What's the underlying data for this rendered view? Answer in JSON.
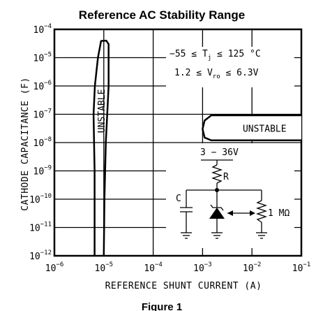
{
  "chart_data": {
    "type": "line",
    "title": "Reference AC Stability Range",
    "xlabel": "REFERENCE SHUNT CURRENT (A)",
    "ylabel": "CATHODE CAPACITANCE (F)",
    "x_scale": "log",
    "y_scale": "log",
    "xlim": [
      1e-06,
      0.1
    ],
    "ylim": [
      1e-12,
      0.0001
    ],
    "grid": true,
    "x_ticks": [
      {
        "base": "10",
        "exp": "−6"
      },
      {
        "base": "10",
        "exp": "−5"
      },
      {
        "base": "10",
        "exp": "−4"
      },
      {
        "base": "10",
        "exp": "−3"
      },
      {
        "base": "10",
        "exp": "−2"
      },
      {
        "base": "10",
        "exp": "−1"
      }
    ],
    "y_ticks": [
      {
        "base": "10",
        "exp": "−12"
      },
      {
        "base": "10",
        "exp": "−11"
      },
      {
        "base": "10",
        "exp": "−10"
      },
      {
        "base": "10",
        "exp": "−9"
      },
      {
        "base": "10",
        "exp": "−8"
      },
      {
        "base": "10",
        "exp": "−7"
      },
      {
        "base": "10",
        "exp": "−6"
      },
      {
        "base": "10",
        "exp": "−5"
      },
      {
        "base": "10",
        "exp": "−4"
      }
    ],
    "boundaries": [
      {
        "region_label": "UNSTABLE",
        "points": [
          [
            6.5e-06,
            1e-12
          ],
          [
            6.5e-06,
            1e-09
          ],
          [
            6.2e-06,
            1e-07
          ],
          [
            6.6e-06,
            1e-06
          ],
          [
            7.6e-06,
            1e-05
          ],
          [
            8.8e-06,
            3.9e-05
          ],
          [
            1.12e-05,
            4e-05
          ],
          [
            1.25e-05,
            3e-05
          ],
          [
            1.25e-05,
            1e-06
          ],
          [
            1.1e-05,
            1e-08
          ],
          [
            1.03e-05,
            1e-10
          ],
          [
            1e-05,
            1e-12
          ]
        ]
      },
      {
        "region_label": "UNSTABLE",
        "points": [
          [
            0.1,
            9.2e-08
          ],
          [
            0.0015,
            9.2e-08
          ],
          [
            0.0011,
            6e-08
          ],
          [
            0.001,
            3e-08
          ],
          [
            0.0011,
            1.5e-08
          ],
          [
            0.0015,
            1.2e-08
          ],
          [
            0.1,
            1.2e-08
          ]
        ]
      }
    ],
    "annotations": {
      "temp": {
        "prefix": "−55 ≤ T",
        "sub": "j",
        "suffix": " ≤ 125 °C"
      },
      "vro": {
        "prefix": "1.2 ≤ V",
        "sub": "ro",
        "suffix": " ≤ 6.3V"
      }
    },
    "circuit": {
      "supply": "3 − 36V",
      "resistor": "R",
      "capacitor": "C",
      "pot": "1 MΩ"
    },
    "caption": "Figure 1"
  }
}
